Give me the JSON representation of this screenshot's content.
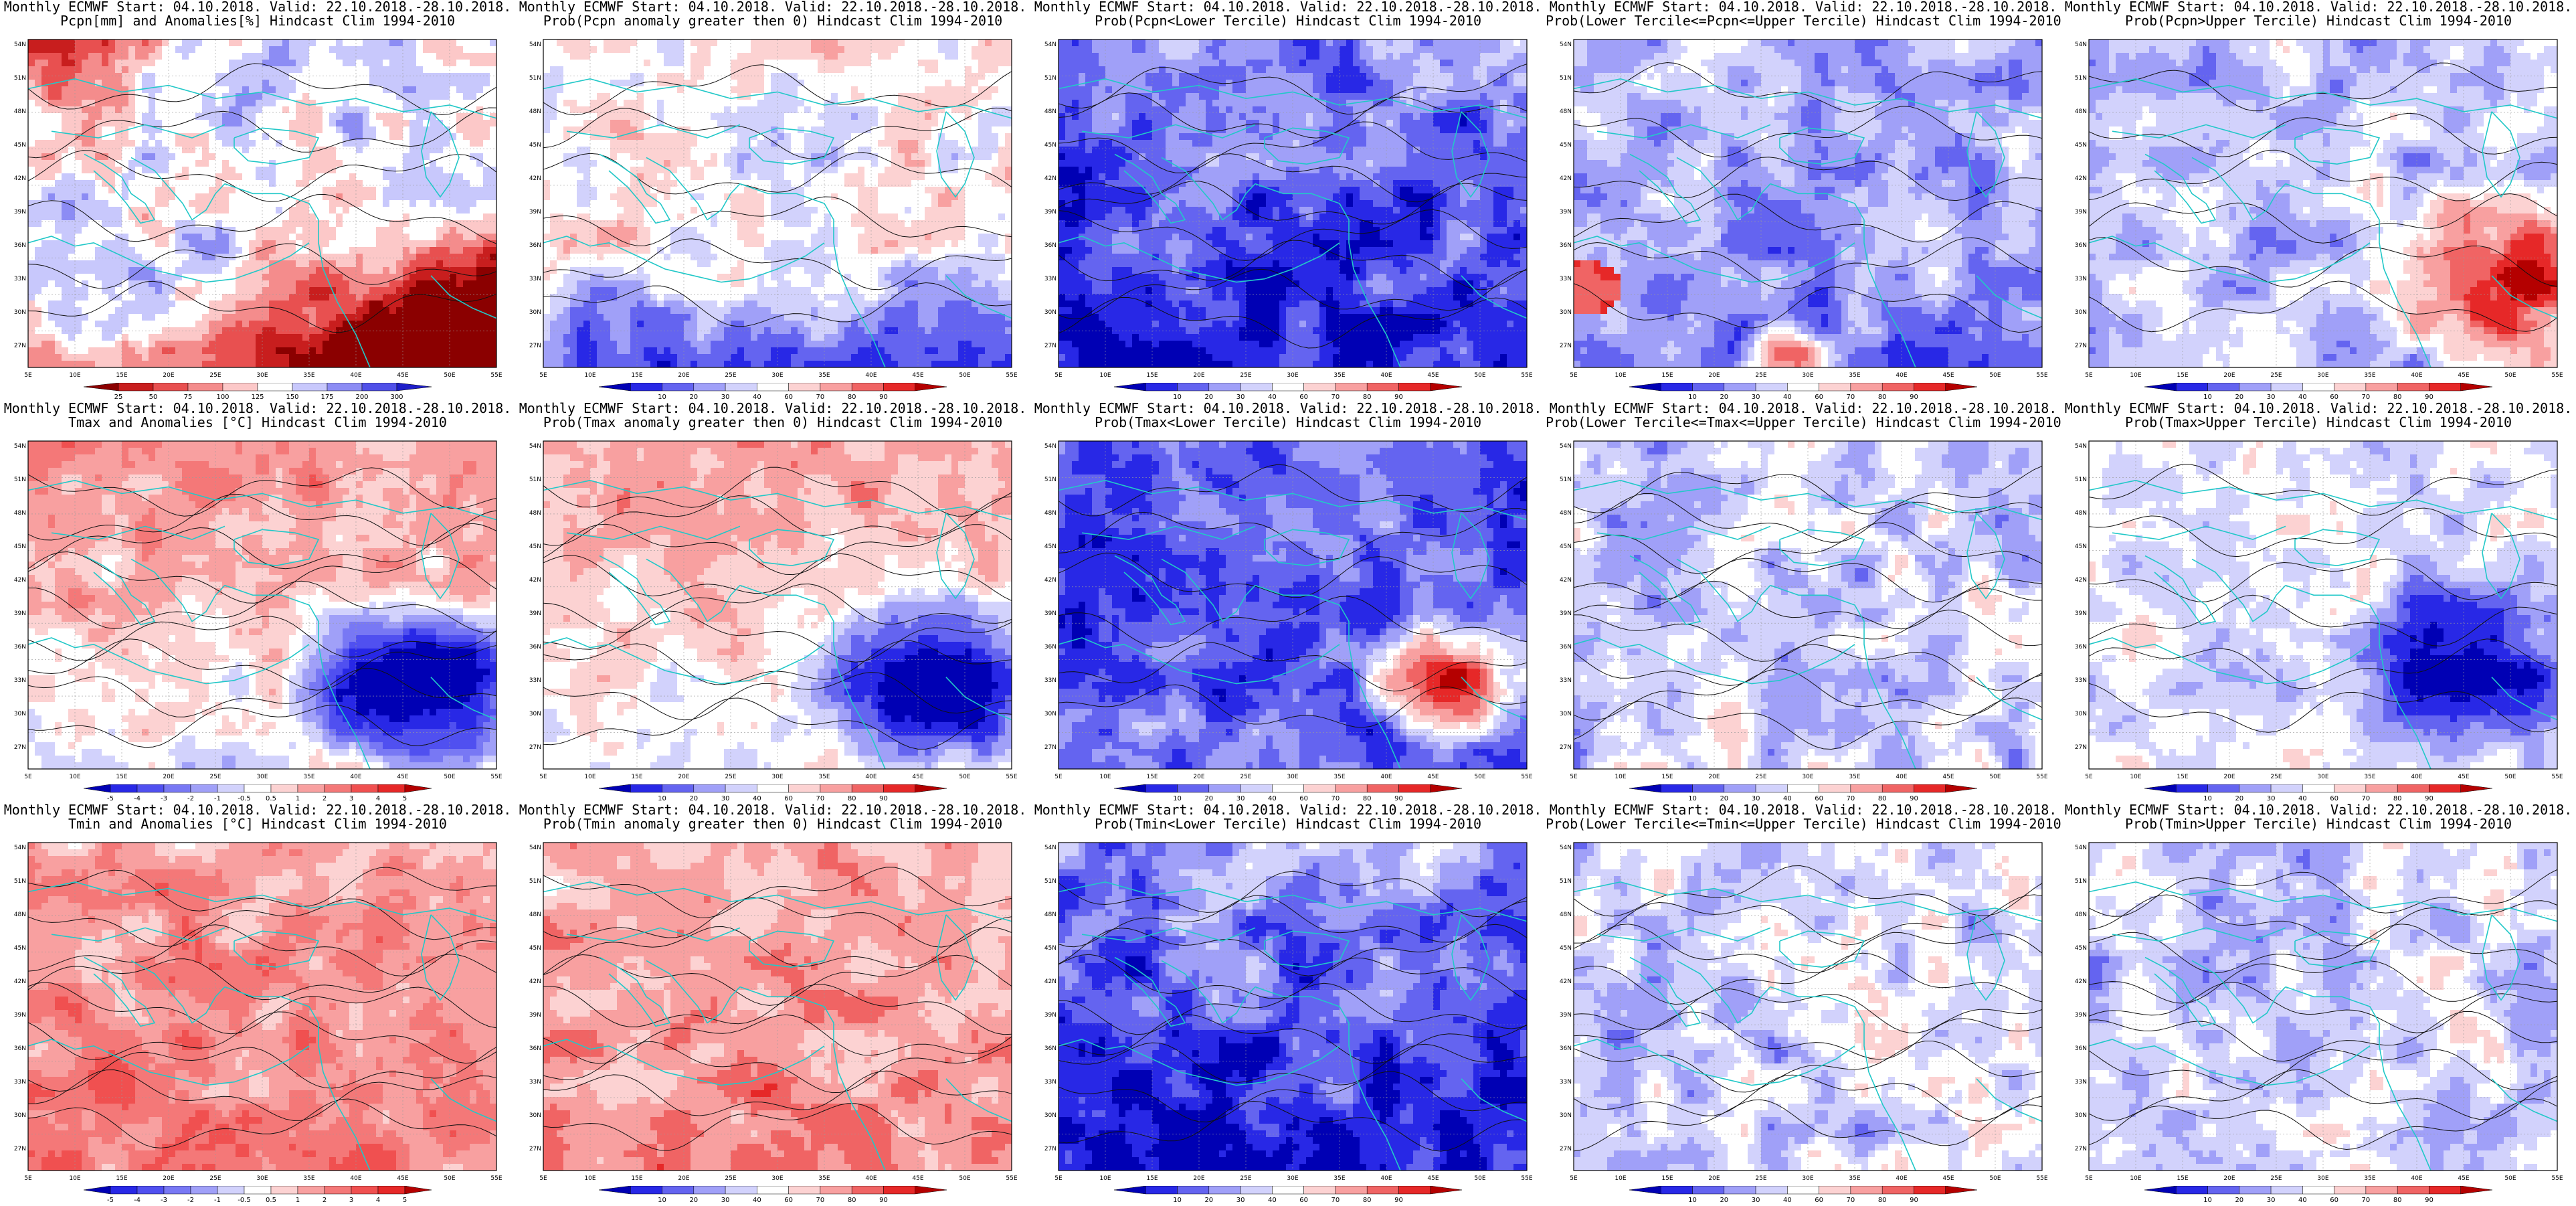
{
  "panels": [
    {
      "title1": "Monthly ECMWF Start: 04.10.2018. Valid: 22.10.2018.-28.10.2018.",
      "title2": "Pcpn[mm] and Anomalies[%] Hindcast Clim 1994-2010",
      "scale": "pcpn_anom",
      "theme": "pcpn_anom"
    },
    {
      "title1": "Monthly ECMWF Start: 04.10.2018. Valid: 22.10.2018.-28.10.2018.",
      "title2": "Prob(Pcpn anomaly greater then 0) Hindcast Clim 1994-2010",
      "scale": "prob",
      "theme": "mixed_blue"
    },
    {
      "title1": "Monthly ECMWF Start: 04.10.2018. Valid: 22.10.2018.-28.10.2018.",
      "title2": "Prob(Pcpn<Lower Tercile) Hindcast Clim 1994-2010",
      "scale": "prob",
      "theme": "deep_blue"
    },
    {
      "title1": "Monthly ECMWF Start: 04.10.2018. Valid: 22.10.2018.-28.10.2018.",
      "title2": "Prob(Lower Tercile<=Pcpn<=Upper Tercile) Hindcast Clim 1994-2010",
      "scale": "prob",
      "theme": "blue_red_spot"
    },
    {
      "title1": "Monthly ECMWF Start: 04.10.2018. Valid: 22.10.2018.-28.10.2018.",
      "title2": "Prob(Pcpn>Upper Tercile) Hindcast Clim 1994-2010",
      "scale": "prob",
      "theme": "blue_red_se"
    },
    {
      "title1": "Monthly ECMWF Start: 04.10.2018. Valid: 22.10.2018.-28.10.2018.",
      "title2": "Tmax and Anomalies [°C] Hindcast Clim 1994-2010",
      "scale": "t_anom",
      "theme": "warm_north"
    },
    {
      "title1": "Monthly ECMWF Start: 04.10.2018. Valid: 22.10.2018.-28.10.2018.",
      "title2": "Prob(Tmax anomaly greater then 0) Hindcast Clim 1994-2010",
      "scale": "prob",
      "theme": "warm_north"
    },
    {
      "title1": "Monthly ECMWF Start: 04.10.2018. Valid: 22.10.2018.-28.10.2018.",
      "title2": "Prob(Tmax<Lower Tercile) Hindcast Clim 1994-2010",
      "scale": "prob",
      "theme": "deep_blue_red_se"
    },
    {
      "title1": "Monthly ECMWF Start: 04.10.2018. Valid: 22.10.2018.-28.10.2018.",
      "title2": "Prob(Lower Tercile<=Tmax<=Upper Tercile) Hindcast Clim 1994-2010",
      "scale": "prob",
      "theme": "light_blue"
    },
    {
      "title1": "Monthly ECMWF Start: 04.10.2018. Valid: 22.10.2018.-28.10.2018.",
      "title2": "Prob(Tmax>Upper Tercile) Hindcast Clim 1994-2010",
      "scale": "prob",
      "theme": "blue_se"
    },
    {
      "title1": "Monthly ECMWF Start: 04.10.2018. Valid: 22.10.2018.-28.10.2018.",
      "title2": "Tmin and Anomalies [°C] Hindcast Clim 1994-2010",
      "scale": "t_anom",
      "theme": "warm_all"
    },
    {
      "title1": "Monthly ECMWF Start: 04.10.2018. Valid: 22.10.2018.-28.10.2018.",
      "title2": "Prob(Tmin anomaly greater then 0) Hindcast Clim 1994-2010",
      "scale": "prob",
      "theme": "warm_all"
    },
    {
      "title1": "Monthly ECMWF Start: 04.10.2018. Valid: 22.10.2018.-28.10.2018.",
      "title2": "Prob(Tmin<Lower Tercile) Hindcast Clim 1994-2010",
      "scale": "prob",
      "theme": "deep_blue"
    },
    {
      "title1": "Monthly ECMWF Start: 04.10.2018. Valid: 22.10.2018.-28.10.2018.",
      "title2": "Prob(Lower Tercile<=Tmin<=Upper Tercile) Hindcast Clim 1994-2010",
      "scale": "prob",
      "theme": "light_blue"
    },
    {
      "title1": "Monthly ECMWF Start: 04.10.2018. Valid: 22.10.2018.-28.10.2018.",
      "title2": "Prob(Tmin>Upper Tercile) Hindcast Clim 1994-2010",
      "scale": "prob",
      "theme": "light_blue"
    }
  ],
  "scales": {
    "pcpn_anom": {
      "ticks": [
        "25",
        "50",
        "75",
        "100",
        "125",
        "150",
        "175",
        "200",
        "300"
      ],
      "colors": [
        "#8b0000",
        "#c81e1e",
        "#e85050",
        "#f48c8c",
        "#fcc8c8",
        "#ffffff",
        "#c8c8fc",
        "#8c8cf4",
        "#5050e8",
        "#1e1ec8"
      ]
    },
    "prob": {
      "ticks": [
        "10",
        "20",
        "30",
        "40",
        "60",
        "70",
        "80",
        "90"
      ],
      "colors": [
        "#0000b4",
        "#2828e6",
        "#6464f0",
        "#a0a0f8",
        "#d2d2fc",
        "#ffffff",
        "#fcd2d2",
        "#f8a0a0",
        "#f06464",
        "#e62828",
        "#b40000"
      ]
    },
    "t_anom": {
      "ticks": [
        "-5",
        "-4",
        "-3",
        "-2",
        "-1",
        "-0.5",
        "0.5",
        "1",
        "2",
        "3",
        "4",
        "5"
      ],
      "colors": [
        "#0000b4",
        "#2828e6",
        "#5050f0",
        "#7878f4",
        "#a0a0f8",
        "#d2d2fc",
        "#ffffff",
        "#fcd2d2",
        "#f8a0a0",
        "#f47878",
        "#f05050",
        "#e62828",
        "#b40000"
      ]
    }
  },
  "axes": {
    "lon_labels": [
      "5E",
      "10E",
      "15E",
      "20E",
      "25E",
      "30E",
      "35E",
      "40E",
      "45E",
      "50E",
      "55E"
    ],
    "lat_labels": [
      "27N",
      "30N",
      "33N",
      "36N",
      "39N",
      "42N",
      "45N",
      "48N",
      "51N",
      "54N"
    ]
  },
  "colors": {
    "coast": "#22c8c8",
    "contour": "#111111",
    "frame": "#000000"
  }
}
